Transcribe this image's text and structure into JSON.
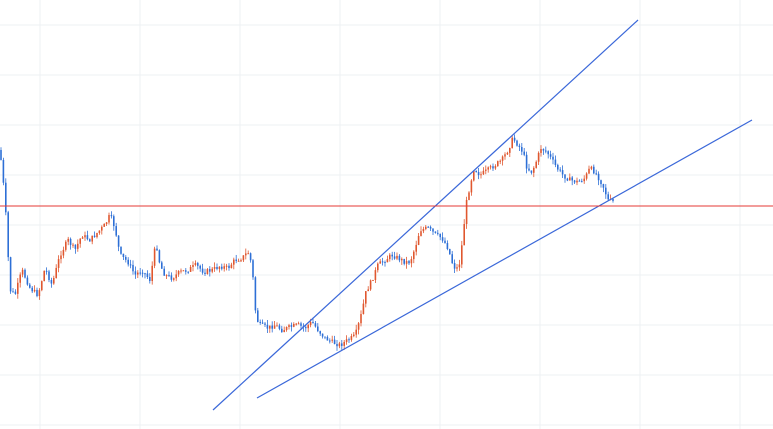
{
  "chart_data": {
    "type": "candlestick",
    "title": "",
    "xlabel": "",
    "ylabel": "",
    "ylim": [
      0,
      429
    ],
    "grid": true,
    "colors": {
      "up": "#e0572f",
      "down": "#2d6fd6",
      "trendline": "#3b68d9",
      "level": "#e53935",
      "grid": "#eef0f3"
    },
    "price_path": [
      [
        0,
        150
      ],
      [
        5,
        200
      ],
      [
        10,
        290
      ],
      [
        15,
        295
      ],
      [
        22,
        270
      ],
      [
        30,
        288
      ],
      [
        38,
        295
      ],
      [
        45,
        268
      ],
      [
        52,
        285
      ],
      [
        60,
        255
      ],
      [
        68,
        240
      ],
      [
        75,
        250
      ],
      [
        82,
        235
      ],
      [
        90,
        240
      ],
      [
        98,
        232
      ],
      [
        105,
        225
      ],
      [
        110,
        215
      ],
      [
        115,
        228
      ],
      [
        120,
        255
      ],
      [
        128,
        262
      ],
      [
        135,
        275
      ],
      [
        142,
        270
      ],
      [
        150,
        280
      ],
      [
        156,
        242
      ],
      [
        160,
        265
      ],
      [
        165,
        275
      ],
      [
        172,
        278
      ],
      [
        180,
        272
      ],
      [
        188,
        270
      ],
      [
        196,
        265
      ],
      [
        204,
        272
      ],
      [
        212,
        270
      ],
      [
        220,
        266
      ],
      [
        228,
        268
      ],
      [
        235,
        260
      ],
      [
        242,
        258
      ],
      [
        248,
        252
      ],
      [
        252,
        265
      ],
      [
        256,
        318
      ],
      [
        260,
        325
      ],
      [
        268,
        328
      ],
      [
        275,
        325
      ],
      [
        282,
        330
      ],
      [
        290,
        327
      ],
      [
        298,
        325
      ],
      [
        305,
        328
      ],
      [
        312,
        322
      ],
      [
        318,
        330
      ],
      [
        325,
        338
      ],
      [
        332,
        342
      ],
      [
        340,
        345
      ],
      [
        348,
        340
      ],
      [
        355,
        336
      ],
      [
        360,
        320
      ],
      [
        366,
        292
      ],
      [
        372,
        280
      ],
      [
        378,
        265
      ],
      [
        385,
        260
      ],
      [
        392,
        255
      ],
      [
        398,
        258
      ],
      [
        405,
        262
      ],
      [
        410,
        262
      ],
      [
        415,
        248
      ],
      [
        420,
        230
      ],
      [
        428,
        228
      ],
      [
        436,
        235
      ],
      [
        442,
        238
      ],
      [
        448,
        248
      ],
      [
        452,
        262
      ],
      [
        456,
        270
      ],
      [
        460,
        262
      ],
      [
        463,
        235
      ],
      [
        466,
        205
      ],
      [
        470,
        185
      ],
      [
        474,
        168
      ],
      [
        480,
        175
      ],
      [
        488,
        170
      ],
      [
        495,
        165
      ],
      [
        502,
        160
      ],
      [
        508,
        150
      ],
      [
        513,
        138
      ],
      [
        518,
        145
      ],
      [
        523,
        152
      ],
      [
        527,
        168
      ],
      [
        532,
        172
      ],
      [
        536,
        162
      ],
      [
        541,
        148
      ],
      [
        547,
        152
      ],
      [
        552,
        160
      ],
      [
        557,
        168
      ],
      [
        563,
        175
      ],
      [
        570,
        180
      ],
      [
        578,
        182
      ],
      [
        585,
        178
      ],
      [
        590,
        168
      ],
      [
        595,
        172
      ],
      [
        600,
        180
      ],
      [
        604,
        188
      ],
      [
        608,
        200
      ],
      [
        614,
        202
      ]
    ],
    "annotations": [
      {
        "type": "trendline",
        "from": [
          213,
          410
        ],
        "to": [
          638,
          20
        ]
      },
      {
        "type": "trendline",
        "from": [
          257,
          398
        ],
        "to": [
          752,
          120
        ]
      },
      {
        "type": "horizontal",
        "y": 206
      }
    ]
  }
}
